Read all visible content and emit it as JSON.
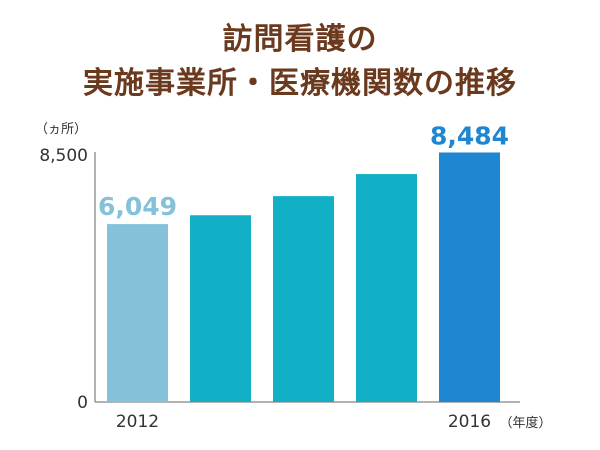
{
  "title_line1": "訪問看護の",
  "title_line2": "実施事業所・医療機関数の推移",
  "chart_data": {
    "type": "bar",
    "title": "訪問看護の 実施事業所・医療機関数の推移",
    "ylabel": "（ヵ所）",
    "xlabel": "（年度）",
    "categories": [
      "2012",
      "",
      "",
      "",
      "2016"
    ],
    "values": [
      6049,
      6350,
      7000,
      7750,
      8484
    ],
    "ylim": [
      0,
      8500
    ],
    "yticks": [
      "8,500",
      "0"
    ],
    "data_labels": [
      "6,049",
      "",
      "",
      "",
      "8,484"
    ],
    "colors": {
      "first": "#85c1d8",
      "middle": "#12b0c6",
      "last": "#1f86d1",
      "label_first": "#85c1d8",
      "label_last": "#1f86d1"
    },
    "grid": false,
    "legend": "none"
  }
}
